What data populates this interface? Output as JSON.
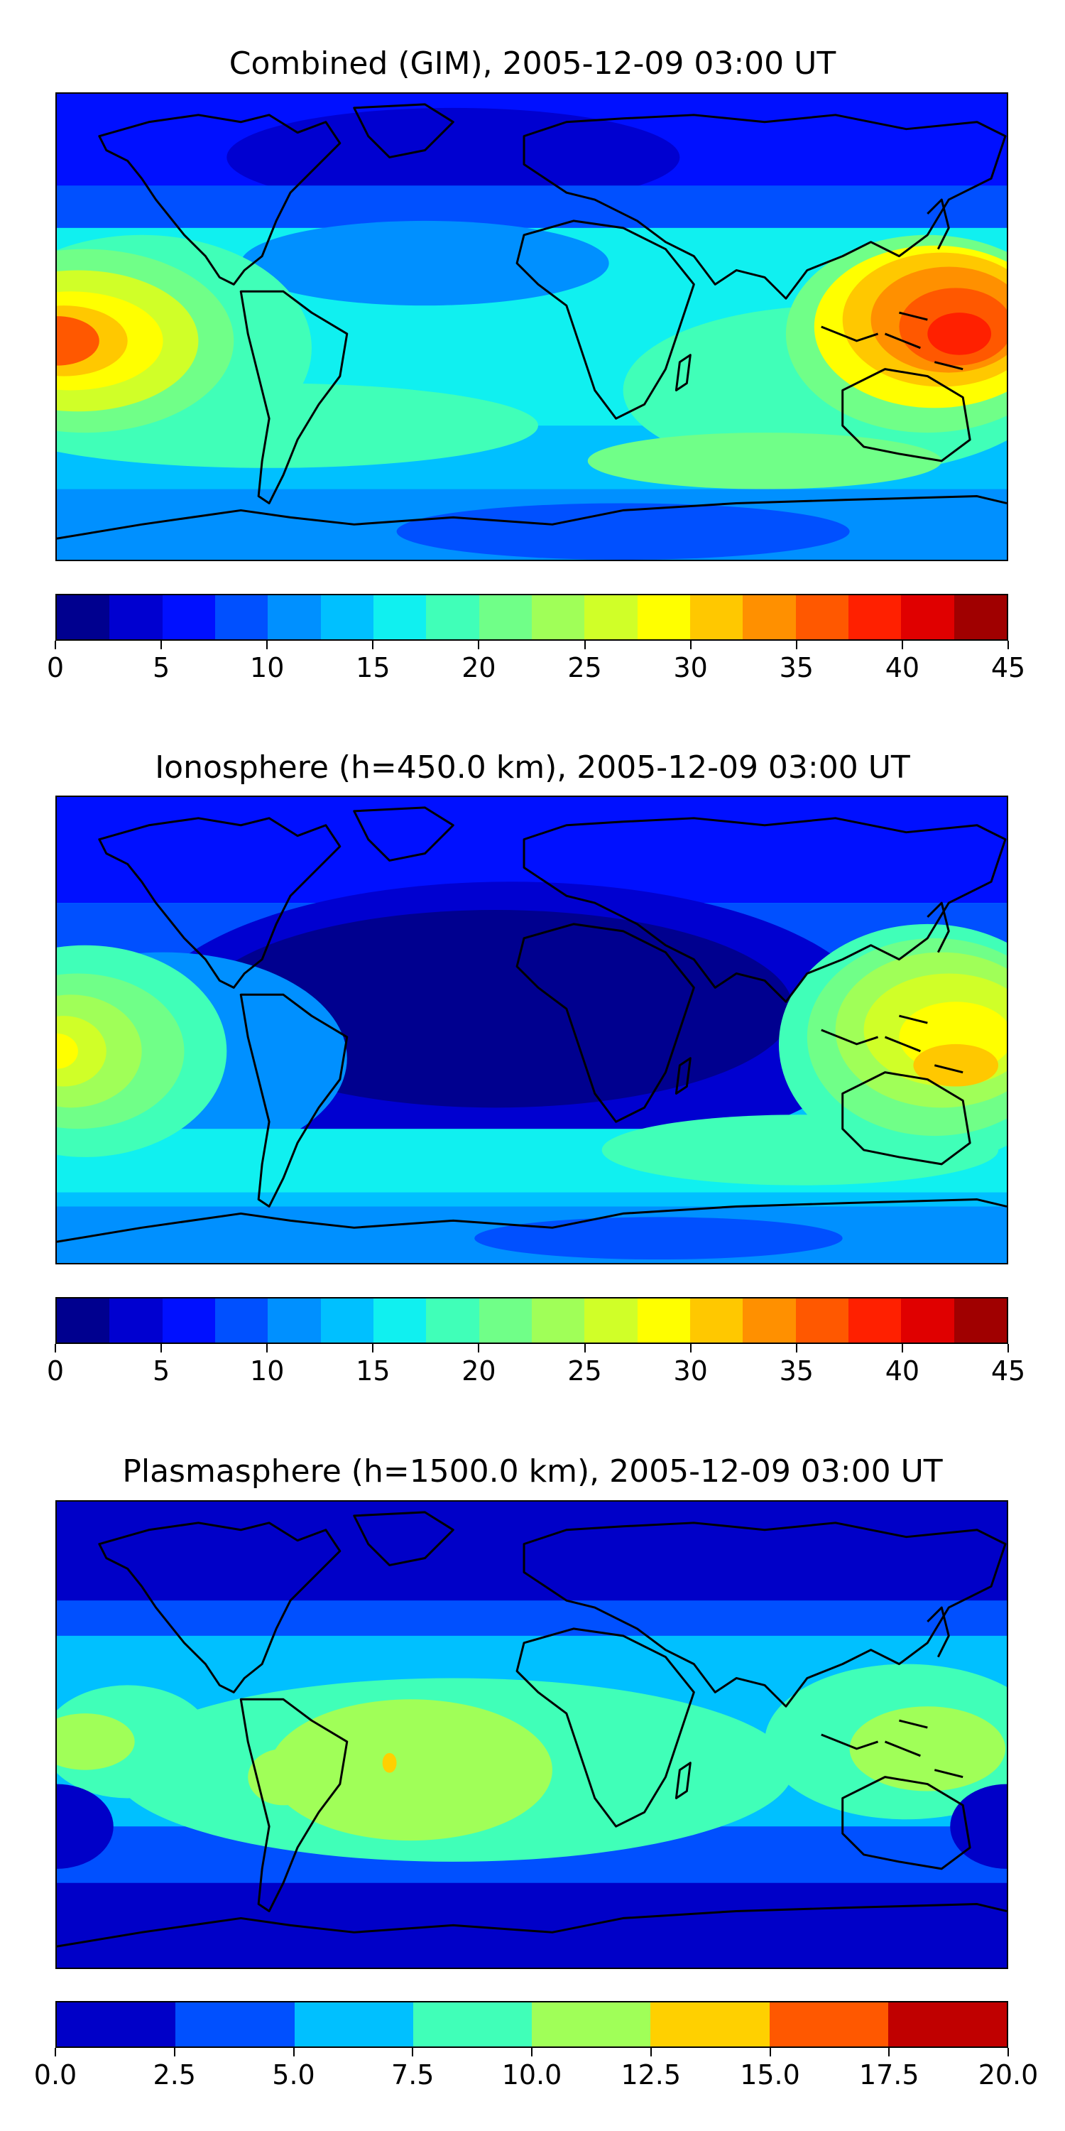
{
  "panels": [
    {
      "title": "Combined (GIM), 2005-12-09 03:00 UT",
      "colorbar": {
        "levels": [
          0,
          2.5,
          5,
          7.5,
          10,
          12.5,
          15,
          17.5,
          20,
          22.5,
          25,
          27.5,
          30,
          32.5,
          35,
          37.5,
          40,
          42.5,
          45
        ],
        "colors": [
          "#00008f",
          "#0000d0",
          "#0010ff",
          "#0050ff",
          "#0090ff",
          "#00c0ff",
          "#10f0f0",
          "#40ffb8",
          "#70ff88",
          "#a0ff58",
          "#d0ff28",
          "#ffff00",
          "#ffc800",
          "#ff9000",
          "#ff5800",
          "#ff2000",
          "#e00000",
          "#a00000"
        ],
        "ticks": [
          "0",
          "5",
          "10",
          "15",
          "20",
          "25",
          "30",
          "35",
          "40",
          "45"
        ]
      }
    },
    {
      "title": "Ionosphere  (h=450.0 km), 2005-12-09 03:00 UT",
      "colorbar": {
        "levels": [
          0,
          2.5,
          5,
          7.5,
          10,
          12.5,
          15,
          17.5,
          20,
          22.5,
          25,
          27.5,
          30,
          32.5,
          35,
          37.5,
          40,
          42.5,
          45
        ],
        "colors": [
          "#00008f",
          "#0000d0",
          "#0010ff",
          "#0050ff",
          "#0090ff",
          "#00c0ff",
          "#10f0f0",
          "#40ffb8",
          "#70ff88",
          "#a0ff58",
          "#d0ff28",
          "#ffff00",
          "#ffc800",
          "#ff9000",
          "#ff5800",
          "#ff2000",
          "#e00000",
          "#a00000"
        ],
        "ticks": [
          "0",
          "5",
          "10",
          "15",
          "20",
          "25",
          "30",
          "35",
          "40",
          "45"
        ]
      }
    },
    {
      "title": "Plasmasphere (h=1500.0 km), 2005-12-09 03:00 UT",
      "colorbar": {
        "levels": [
          0,
          2.5,
          5,
          7.5,
          10,
          12.5,
          15,
          17.5,
          20
        ],
        "colors": [
          "#0000c8",
          "#0050ff",
          "#00c0ff",
          "#40ffb8",
          "#a0ff58",
          "#ffd000",
          "#ff5800",
          "#c00000"
        ],
        "ticks": [
          "0.0",
          "2.5",
          "5.0",
          "7.5",
          "10.0",
          "12.5",
          "15.0",
          "17.5",
          "20.0"
        ]
      }
    }
  ]
}
